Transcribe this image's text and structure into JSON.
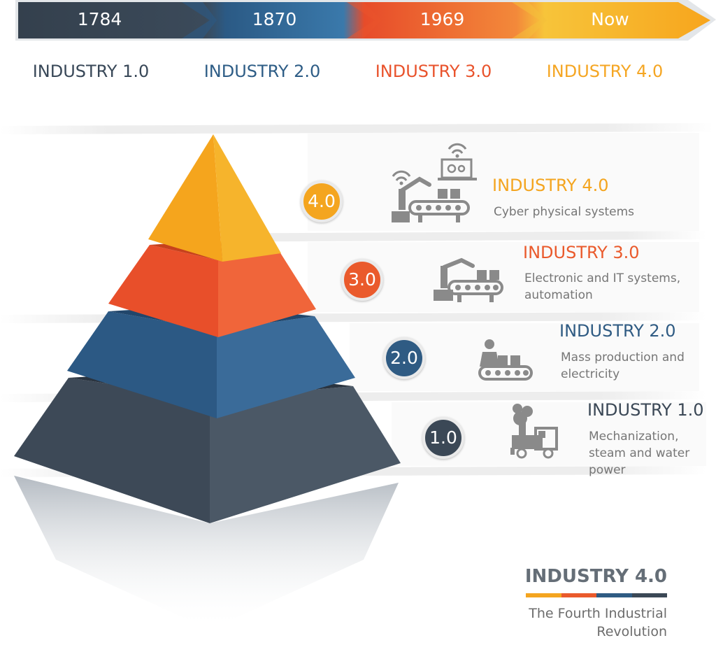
{
  "timeline": [
    {
      "year": "1784",
      "label": "INDUSTRY 1.0",
      "color": "#394858"
    },
    {
      "year": "1870",
      "label": "INDUSTRY 2.0",
      "color": "#2e5d86"
    },
    {
      "year": "1969",
      "label": "INDUSTRY 3.0",
      "color": "#e9532c"
    },
    {
      "year": "Now",
      "label": "INDUSTRY 4.0",
      "color": "#f5a623"
    }
  ],
  "levels": [
    {
      "badge": "4.0",
      "title": "INDUSTRY 4.0",
      "desc": "Cyber physical systems",
      "color": "#f4a51f",
      "icon": "smart-factory-icon"
    },
    {
      "badge": "3.0",
      "title": "INDUSTRY 3.0",
      "desc": "Electronic and IT systems, automation",
      "color": "#ea5a2c",
      "icon": "robot-arm-icon"
    },
    {
      "badge": "2.0",
      "title": "INDUSTRY 2.0",
      "desc": "Mass production and electricity",
      "color": "#2f5b83",
      "icon": "assembly-line-icon"
    },
    {
      "badge": "1.0",
      "title": "INDUSTRY 1.0",
      "desc": "Mechanization, steam and water power",
      "color": "#3b4856",
      "icon": "steam-engine-icon"
    }
  ],
  "brand": {
    "title": "INDUSTRY 4.0",
    "subtitle": "The Fourth Industrial Revolution",
    "bar_colors": [
      "#f4a51f",
      "#ea5a2c",
      "#2f5b83",
      "#3b4856"
    ]
  }
}
